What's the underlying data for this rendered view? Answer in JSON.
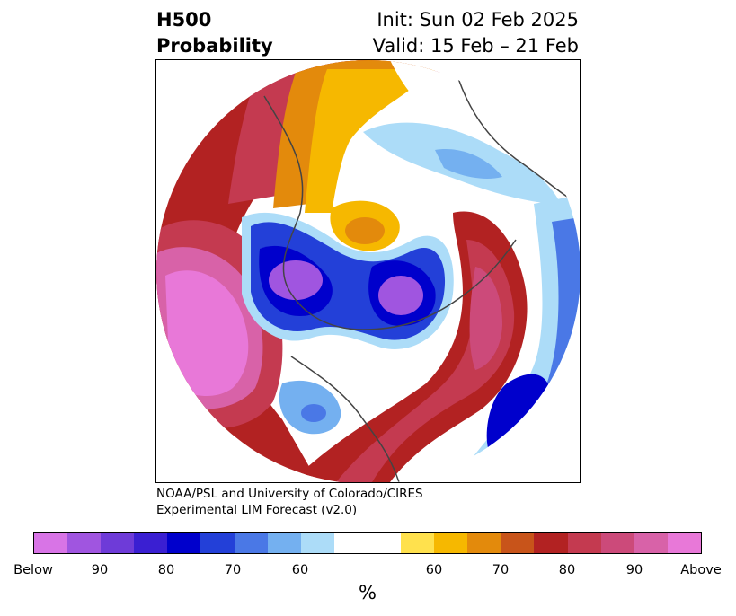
{
  "title": {
    "line1": "H500",
    "line2": "Probability",
    "init": "Init: Sun 02 Feb 2025",
    "valid": "Valid: 15 Feb – 21 Feb"
  },
  "credit": {
    "line1": "NOAA/PSL and University of Colorado/CIRES",
    "line2": "Experimental LIM Forecast (v2.0)"
  },
  "colorbar": {
    "colors": [
      "#d874e6",
      "#a055e0",
      "#6e3bd8",
      "#3a1fd2",
      "#0000cc",
      "#2340d8",
      "#4a78e6",
      "#74b0f0",
      "#acdcf8",
      "#ffffff",
      "#ffe14d",
      "#f6b800",
      "#e38a0c",
      "#c8541a",
      "#b22222",
      "#c43a50",
      "#cc4a7a",
      "#d862a8",
      "#e878d8"
    ],
    "tick_labels": [
      "Below",
      "90",
      "80",
      "70",
      "60",
      "60",
      "70",
      "80",
      "90",
      "Above"
    ],
    "units": "%"
  },
  "map": {
    "projection": "north-polar-stereographic",
    "features": [
      {
        "label": "negative-anomaly-center",
        "category": "Below 90",
        "color": "#a055e0"
      },
      {
        "label": "positive-anomaly-center",
        "category": "Above 90",
        "color": "#e878d8"
      }
    ]
  }
}
